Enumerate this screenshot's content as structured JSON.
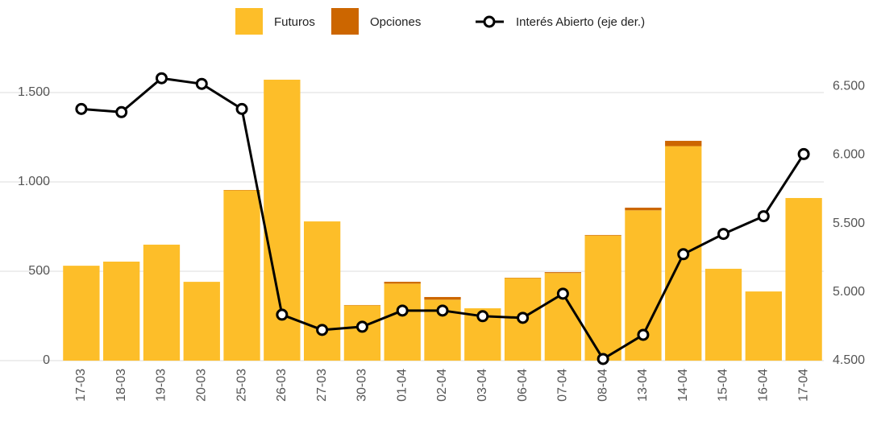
{
  "chart_data": {
    "type": "bar",
    "stacked": true,
    "categories": [
      "17-03",
      "18-03",
      "19-03",
      "20-03",
      "25-03",
      "26-03",
      "27-03",
      "30-03",
      "01-04",
      "02-04",
      "03-04",
      "06-04",
      "07-04",
      "08-04",
      "13-04",
      "14-04",
      "15-04",
      "16-04",
      "17-04"
    ],
    "series": [
      {
        "name": "Futuros",
        "color": "#fdbe29",
        "values": [
          531,
          554,
          649,
          441,
          953,
          1572,
          779,
          309,
          431,
          341,
          293,
          462,
          490,
          700,
          841,
          1200,
          514,
          387,
          910
        ]
      },
      {
        "name": "Opciones",
        "color": "#cc6600",
        "values": [
          0,
          0,
          0,
          0,
          2,
          0,
          0,
          2,
          10,
          15,
          0,
          2,
          5,
          3,
          15,
          30,
          0,
          0,
          0
        ]
      },
      {
        "name": "Interés Abierto (eje der.)",
        "color": "#000000",
        "type": "line",
        "axis": "y2",
        "values": [
          6335,
          6312,
          6559,
          6518,
          6335,
          4835,
          4724,
          4747,
          4865,
          4865,
          4824,
          4812,
          4988,
          4512,
          4688,
          5276,
          5424,
          5553,
          6006
        ]
      }
    ],
    "ylim": [
      0,
      1650
    ],
    "yticks": [
      0,
      500,
      {
        "value": 1000,
        "label": "1.000"
      },
      {
        "value": 1500,
        "label": "1.500"
      }
    ],
    "y2lim": [
      4500,
      6650
    ],
    "y2ticks": [
      {
        "value": 4500,
        "label": "4.500"
      },
      {
        "value": 5000,
        "label": "5.000"
      },
      {
        "value": 5500,
        "label": "5.500"
      },
      {
        "value": 6000,
        "label": "6.000"
      },
      {
        "value": 6500,
        "label": "6.500"
      }
    ],
    "grid": true,
    "legend": "top"
  }
}
